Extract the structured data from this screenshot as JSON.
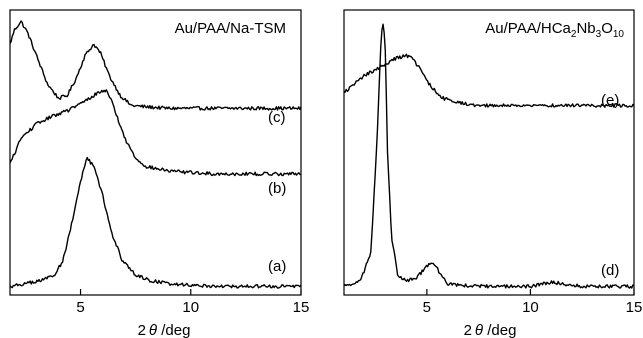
{
  "chart_data": [
    {
      "type": "line",
      "title": "Au/PAA/Na-TSM",
      "xlabel_prefix": "2",
      "xlabel_symbol": "θ",
      "xlabel_suffix": " /deg",
      "ylabel": "",
      "xlim": [
        1.8,
        15
      ],
      "ylim": [
        0,
        1
      ],
      "xticks": [
        5,
        10,
        15
      ],
      "grid": false,
      "series": [
        {
          "name": "(c)",
          "x": [
            1.8,
            2.0,
            2.3,
            2.6,
            3.0,
            3.5,
            4.0,
            4.4,
            4.8,
            5.2,
            5.6,
            5.9,
            6.3,
            6.8,
            7.3,
            8.0,
            9.0,
            10.0,
            12.0,
            15.0
          ],
          "y": [
            0.88,
            0.93,
            0.96,
            0.92,
            0.84,
            0.74,
            0.69,
            0.7,
            0.76,
            0.84,
            0.88,
            0.85,
            0.77,
            0.7,
            0.665,
            0.66,
            0.655,
            0.655,
            0.655,
            0.655
          ]
        },
        {
          "name": "(b)",
          "x": [
            1.8,
            2.3,
            3.0,
            3.8,
            4.5,
            5.2,
            5.8,
            6.2,
            6.6,
            7.0,
            7.5,
            8.0,
            9.0,
            10.0,
            11.0,
            12.0,
            13.5,
            15.0
          ],
          "y": [
            0.46,
            0.55,
            0.6,
            0.63,
            0.65,
            0.68,
            0.71,
            0.72,
            0.64,
            0.55,
            0.48,
            0.45,
            0.435,
            0.43,
            0.425,
            0.425,
            0.425,
            0.425
          ]
        },
        {
          "name": "(a)",
          "x": [
            1.8,
            2.5,
            3.2,
            3.8,
            4.2,
            4.6,
            5.0,
            5.3,
            5.6,
            6.0,
            6.4,
            6.9,
            7.5,
            8.2,
            9.0,
            10.0,
            11.5,
            13.0,
            15.0
          ],
          "y": [
            0.03,
            0.04,
            0.05,
            0.07,
            0.12,
            0.25,
            0.4,
            0.48,
            0.45,
            0.35,
            0.22,
            0.12,
            0.07,
            0.05,
            0.04,
            0.035,
            0.03,
            0.03,
            0.03
          ]
        }
      ]
    },
    {
      "type": "line",
      "title_parts": [
        "Au/PAA/HCa",
        "2",
        "Nb",
        "3",
        "O",
        "10"
      ],
      "xlabel_prefix": "2",
      "xlabel_symbol": "θ",
      "xlabel_suffix": " /deg",
      "ylabel": "",
      "xlim": [
        1.0,
        15
      ],
      "ylim": [
        0,
        1
      ],
      "xticks": [
        5,
        10,
        15
      ],
      "grid": false,
      "series": [
        {
          "name": "(e)",
          "x": [
            1.0,
            1.5,
            2.0,
            2.5,
            3.0,
            3.5,
            4.0,
            4.3,
            4.7,
            5.2,
            5.8,
            6.5,
            7.5,
            9.0,
            11.0,
            13.0,
            15.0
          ],
          "y": [
            0.71,
            0.74,
            0.77,
            0.79,
            0.81,
            0.83,
            0.84,
            0.83,
            0.79,
            0.73,
            0.69,
            0.675,
            0.665,
            0.665,
            0.665,
            0.665,
            0.665
          ]
        },
        {
          "name": "(d)",
          "x": [
            1.0,
            1.8,
            2.3,
            2.6,
            2.8,
            2.9,
            3.0,
            3.1,
            3.3,
            3.6,
            4.0,
            4.5,
            5.0,
            5.3,
            5.6,
            6.0,
            6.5,
            8.0,
            10.0,
            11.0,
            11.5,
            12.5,
            15.0
          ],
          "y": [
            0.03,
            0.05,
            0.15,
            0.55,
            0.92,
            0.96,
            0.85,
            0.5,
            0.2,
            0.07,
            0.05,
            0.06,
            0.1,
            0.115,
            0.08,
            0.04,
            0.035,
            0.03,
            0.03,
            0.045,
            0.04,
            0.03,
            0.03
          ]
        }
      ]
    }
  ]
}
